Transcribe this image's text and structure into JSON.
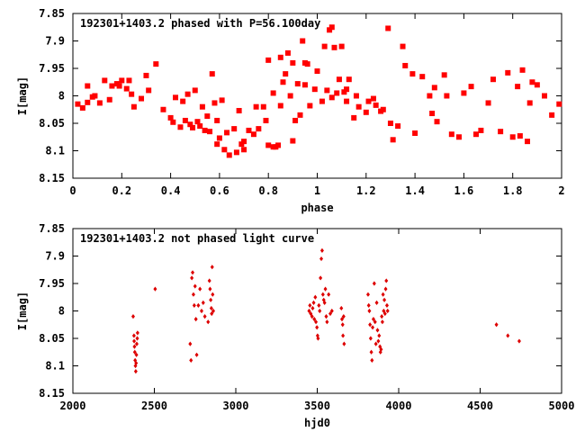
{
  "chart_data": [
    {
      "type": "scatter",
      "title": "192301+1403.2 phased with P=56.100day",
      "xlabel": "phase",
      "ylabel": "I[mag]",
      "xlim": [
        0,
        2
      ],
      "ylim": [
        8.15,
        7.85
      ],
      "y_inverted": true,
      "xticks": [
        0,
        0.2,
        0.4,
        0.6,
        0.8,
        1,
        1.2,
        1.4,
        1.6,
        1.8,
        2
      ],
      "xtick_labels": [
        "0",
        "0.2",
        "0.4",
        "0.6",
        "0.8",
        "1",
        "1.2",
        "1.4",
        "1.6",
        "1.8",
        "2"
      ],
      "yticks": [
        7.85,
        7.9,
        7.95,
        8,
        8.05,
        8.1,
        8.15
      ],
      "ytick_labels": [
        "7.85",
        "7.9",
        "7.95",
        "8",
        "8.05",
        "8.1",
        "8.15"
      ],
      "color": "#ff0000",
      "series": [
        {
          "points": [
            [
              0.02,
              8.015
            ],
            [
              0.04,
              8.022
            ],
            [
              0.06,
              8.012
            ],
            [
              0.06,
              7.982
            ],
            [
              0.08,
              8.002
            ],
            [
              0.09,
              8.0
            ],
            [
              0.11,
              8.013
            ],
            [
              0.13,
              7.972
            ],
            [
              0.15,
              8.007
            ],
            [
              0.16,
              7.982
            ],
            [
              0.18,
              7.978
            ],
            [
              0.19,
              7.982
            ],
            [
              0.2,
              7.972
            ],
            [
              0.22,
              7.987
            ],
            [
              0.23,
              7.972
            ],
            [
              0.24,
              7.997
            ],
            [
              0.25,
              8.02
            ],
            [
              0.28,
              8.005
            ],
            [
              0.3,
              7.963
            ],
            [
              0.31,
              7.99
            ],
            [
              0.34,
              7.942
            ],
            [
              0.37,
              8.025
            ],
            [
              0.4,
              8.04
            ],
            [
              0.41,
              8.048
            ],
            [
              0.42,
              8.003
            ],
            [
              0.44,
              8.057
            ],
            [
              0.45,
              8.01
            ],
            [
              0.46,
              8.045
            ],
            [
              0.47,
              7.997
            ],
            [
              0.48,
              8.052
            ],
            [
              0.49,
              8.058
            ],
            [
              0.5,
              7.99
            ],
            [
              0.51,
              8.047
            ],
            [
              0.52,
              8.055
            ],
            [
              0.53,
              8.02
            ],
            [
              0.54,
              8.063
            ],
            [
              0.55,
              8.037
            ],
            [
              0.56,
              8.065
            ],
            [
              0.57,
              7.96
            ],
            [
              0.58,
              8.013
            ],
            [
              0.59,
              8.045
            ],
            [
              0.59,
              8.088
            ],
            [
              0.6,
              8.077
            ],
            [
              0.61,
              8.008
            ],
            [
              0.62,
              8.098
            ],
            [
              0.63,
              8.067
            ],
            [
              0.64,
              8.108
            ],
            [
              0.66,
              8.06
            ],
            [
              0.67,
              8.103
            ],
            [
              0.68,
              8.027
            ],
            [
              0.69,
              8.088
            ],
            [
              0.7,
              8.098
            ],
            [
              0.7,
              8.083
            ],
            [
              0.72,
              8.063
            ],
            [
              0.74,
              8.07
            ],
            [
              0.75,
              8.02
            ],
            [
              0.76,
              8.06
            ],
            [
              0.78,
              8.02
            ],
            [
              0.79,
              8.045
            ],
            [
              0.8,
              7.935
            ],
            [
              0.8,
              8.09
            ],
            [
              0.82,
              7.995
            ],
            [
              0.82,
              8.093
            ],
            [
              0.83,
              8.093
            ],
            [
              0.84,
              8.09
            ],
            [
              0.85,
              8.018
            ],
            [
              0.85,
              7.93
            ],
            [
              0.86,
              7.975
            ],
            [
              0.87,
              7.96
            ],
            [
              0.88,
              7.922
            ],
            [
              0.89,
              8.0
            ],
            [
              0.9,
              8.082
            ],
            [
              0.9,
              7.94
            ],
            [
              0.91,
              8.045
            ],
            [
              0.92,
              7.978
            ],
            [
              0.93,
              8.035
            ],
            [
              0.94,
              7.9
            ],
            [
              0.95,
              7.98
            ],
            [
              0.95,
              7.94
            ],
            [
              0.96,
              7.942
            ],
            [
              0.97,
              8.018
            ],
            [
              0.99,
              7.988
            ],
            [
              1.0,
              7.955
            ],
            [
              1.02,
              8.01
            ],
            [
              1.03,
              7.91
            ],
            [
              1.04,
              7.99
            ],
            [
              1.05,
              7.88
            ],
            [
              1.06,
              7.875
            ],
            [
              1.06,
              8.003
            ],
            [
              1.07,
              7.912
            ],
            [
              1.08,
              7.995
            ],
            [
              1.09,
              7.97
            ],
            [
              1.1,
              7.91
            ],
            [
              1.11,
              7.993
            ],
            [
              1.12,
              8.01
            ],
            [
              1.12,
              7.988
            ],
            [
              1.13,
              7.97
            ],
            [
              1.15,
              8.04
            ],
            [
              1.16,
              8.0
            ],
            [
              1.17,
              8.02
            ],
            [
              1.2,
              8.03
            ],
            [
              1.21,
              8.01
            ],
            [
              1.23,
              8.005
            ],
            [
              1.24,
              8.017
            ],
            [
              1.26,
              8.028
            ],
            [
              1.27,
              8.025
            ],
            [
              1.29,
              7.877
            ],
            [
              1.3,
              8.05
            ],
            [
              1.31,
              8.08
            ],
            [
              1.33,
              8.055
            ],
            [
              1.35,
              7.91
            ],
            [
              1.36,
              7.945
            ],
            [
              1.39,
              7.96
            ],
            [
              1.4,
              8.068
            ],
            [
              1.43,
              7.965
            ],
            [
              1.46,
              8.0
            ],
            [
              1.47,
              8.032
            ],
            [
              1.48,
              7.985
            ],
            [
              1.49,
              8.047
            ],
            [
              1.52,
              7.962
            ],
            [
              1.53,
              8.0
            ],
            [
              1.55,
              8.07
            ],
            [
              1.58,
              8.075
            ],
            [
              1.6,
              7.995
            ],
            [
              1.63,
              7.983
            ],
            [
              1.65,
              8.07
            ],
            [
              1.67,
              8.063
            ],
            [
              1.7,
              8.013
            ],
            [
              1.72,
              7.97
            ],
            [
              1.75,
              8.065
            ],
            [
              1.78,
              7.958
            ],
            [
              1.8,
              8.075
            ],
            [
              1.82,
              7.983
            ],
            [
              1.83,
              8.073
            ],
            [
              1.84,
              7.953
            ],
            [
              1.86,
              8.083
            ],
            [
              1.87,
              8.013
            ],
            [
              1.88,
              7.975
            ],
            [
              1.9,
              7.98
            ],
            [
              1.93,
              8.0
            ],
            [
              1.96,
              8.035
            ],
            [
              1.99,
              8.015
            ]
          ]
        }
      ]
    },
    {
      "type": "scatter",
      "title": "192301+1403.2 not phased light curve",
      "xlabel": "hjd0",
      "ylabel": "I[mag]",
      "xlim": [
        2000,
        5000
      ],
      "ylim": [
        8.15,
        7.85
      ],
      "y_inverted": true,
      "xticks": [
        2000,
        2500,
        3000,
        3500,
        4000,
        4500,
        5000
      ],
      "xtick_labels": [
        "2000",
        "2500",
        "3000",
        "3500",
        "4000",
        "4500",
        "5000"
      ],
      "yticks": [
        7.85,
        7.9,
        7.95,
        8,
        8.05,
        8.1,
        8.15
      ],
      "ytick_labels": [
        "7.85",
        "7.9",
        "7.95",
        "8",
        "8.05",
        "8.1",
        "8.15"
      ],
      "color": "#ff0000",
      "series": [
        {
          "points": [
            [
              2370,
              8.01
            ],
            [
              2375,
              8.045
            ],
            [
              2376,
              8.055
            ],
            [
              2378,
              8.065
            ],
            [
              2380,
              8.075
            ],
            [
              2382,
              8.09
            ],
            [
              2384,
              8.1
            ],
            [
              2386,
              8.11
            ],
            [
              2388,
              8.095
            ],
            [
              2390,
              8.08
            ],
            [
              2392,
              8.06
            ],
            [
              2395,
              8.05
            ],
            [
              2397,
              8.04
            ],
            [
              2505,
              7.96
            ],
            [
              2720,
              8.06
            ],
            [
              2725,
              8.09
            ],
            [
              2730,
              7.94
            ],
            [
              2735,
              7.93
            ],
            [
              2740,
              7.97
            ],
            [
              2745,
              7.99
            ],
            [
              2750,
              7.955
            ],
            [
              2755,
              8.015
            ],
            [
              2760,
              8.08
            ],
            [
              2770,
              7.99
            ],
            [
              2780,
              7.96
            ],
            [
              2790,
              8.0
            ],
            [
              2800,
              7.985
            ],
            [
              2810,
              8.01
            ],
            [
              2830,
              8.02
            ],
            [
              2838,
              7.945
            ],
            [
              2842,
              7.96
            ],
            [
              2846,
              7.98
            ],
            [
              2850,
              7.995
            ],
            [
              2852,
              8.005
            ],
            [
              2855,
              7.92
            ],
            [
              2858,
              7.97
            ],
            [
              2862,
              8.0
            ],
            [
              3450,
              8.0
            ],
            [
              3455,
              7.99
            ],
            [
              3460,
              8.005
            ],
            [
              3468,
              8.01
            ],
            [
              3472,
              7.995
            ],
            [
              3478,
              7.985
            ],
            [
              3482,
              8.015
            ],
            [
              3488,
              7.975
            ],
            [
              3492,
              8.02
            ],
            [
              3498,
              8.03
            ],
            [
              3502,
              8.045
            ],
            [
              3505,
              8.05
            ],
            [
              3510,
              7.99
            ],
            [
              3515,
              8.0
            ],
            [
              3520,
              7.94
            ],
            [
              3525,
              7.905
            ],
            [
              3530,
              7.89
            ],
            [
              3535,
              7.97
            ],
            [
              3540,
              7.98
            ],
            [
              3545,
              7.985
            ],
            [
              3550,
              7.96
            ],
            [
              3555,
              8.01
            ],
            [
              3560,
              8.02
            ],
            [
              3570,
              7.97
            ],
            [
              3580,
              8.005
            ],
            [
              3590,
              8.0
            ],
            [
              3648,
              7.995
            ],
            [
              3652,
              8.015
            ],
            [
              3656,
              8.025
            ],
            [
              3658,
              8.045
            ],
            [
              3662,
              8.01
            ],
            [
              3665,
              8.06
            ],
            [
              3812,
              7.97
            ],
            [
              3816,
              7.99
            ],
            [
              3820,
              8.0
            ],
            [
              3824,
              8.025
            ],
            [
              3828,
              8.05
            ],
            [
              3832,
              8.075
            ],
            [
              3836,
              8.09
            ],
            [
              3840,
              8.03
            ],
            [
              3845,
              8.015
            ],
            [
              3850,
              7.95
            ],
            [
              3855,
              8.02
            ],
            [
              3860,
              8.06
            ],
            [
              3865,
              7.985
            ],
            [
              3870,
              8.035
            ],
            [
              3875,
              8.055
            ],
            [
              3880,
              8.045
            ],
            [
              3885,
              8.065
            ],
            [
              3888,
              8.075
            ],
            [
              3892,
              8.07
            ],
            [
              3896,
              8.01
            ],
            [
              3900,
              8.02
            ],
            [
              3904,
              7.97
            ],
            [
              3908,
              8.0
            ],
            [
              3912,
              7.98
            ],
            [
              3916,
              8.005
            ],
            [
              3920,
              7.96
            ],
            [
              3924,
              7.945
            ],
            [
              3928,
              7.99
            ],
            [
              3932,
              8.0
            ],
            [
              4600,
              8.025
            ],
            [
              4670,
              8.045
            ],
            [
              4740,
              8.055
            ]
          ]
        }
      ]
    }
  ]
}
